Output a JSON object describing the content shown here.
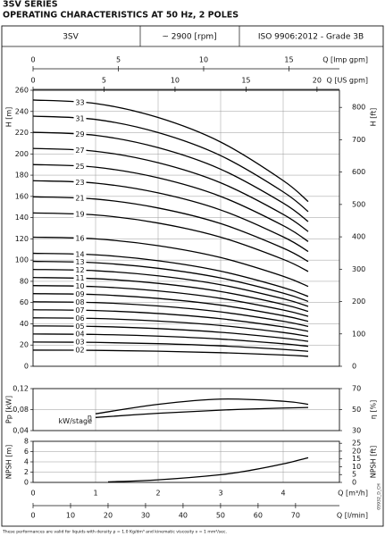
{
  "title": "3SV SERIES",
  "subtitle": "OPERATING CHARACTERISTICS AT 50 Hz, 2 POLES",
  "header": {
    "model": "3SV",
    "speed": "~ 2900 [rpm]",
    "standard": "ISO 9906:2012 - Grade 3B"
  },
  "footnote": "These performances are valid for liquids with density ρ = 1.0 Kg/dm³ and kinematic viscosity ν = 1 mm²/sec.",
  "code": "05932_D_CH",
  "chart_data": [
    {
      "type": "line",
      "ylabel": "H [m]",
      "y2label": "H [ft]",
      "xlim": [
        0,
        4.9
      ],
      "xticks": [
        0,
        1,
        2,
        3,
        4
      ],
      "ylim": [
        0,
        260
      ],
      "yticks": [
        0,
        20,
        40,
        60,
        80,
        100,
        120,
        140,
        160,
        180,
        200,
        220,
        240,
        260
      ],
      "y2lim": [
        0,
        853
      ],
      "y2ticks": [
        0,
        100,
        200,
        300,
        400,
        500,
        600,
        700,
        800
      ],
      "grid": true,
      "x_axes_top": [
        {
          "label": "Q [Imp gpm]",
          "xlim": [
            0,
            17.96
          ],
          "xticks": [
            0,
            5,
            10,
            15
          ]
        },
        {
          "label": "Q [US gpm]",
          "xlim": [
            0,
            21.58
          ],
          "xticks": [
            0,
            5,
            10,
            15,
            20
          ]
        }
      ],
      "x": [
        0,
        1,
        2,
        3,
        4,
        4.4
      ],
      "series": [
        {
          "name": "33",
          "color": "#000000",
          "values": [
            250.8,
            247.5,
            234.3,
            211.2,
            174.9,
            155.1
          ]
        },
        {
          "name": "31",
          "color": "#000000",
          "values": [
            235.6,
            232.5,
            220.1,
            198.4,
            164.3,
            145.7
          ]
        },
        {
          "name": "29",
          "color": "#000000",
          "values": [
            220.4,
            217.5,
            205.9,
            185.6,
            153.7,
            136.3
          ]
        },
        {
          "name": "27",
          "color": "#000000",
          "values": [
            205.2,
            202.5,
            191.7,
            172.8,
            143.1,
            126.9
          ]
        },
        {
          "name": "25",
          "color": "#000000",
          "values": [
            190,
            187.5,
            177.5,
            160,
            132.5,
            117.5
          ]
        },
        {
          "name": "23",
          "color": "#000000",
          "values": [
            174.8,
            172.5,
            163.3,
            147.2,
            121.9,
            108.1
          ]
        },
        {
          "name": "21",
          "color": "#000000",
          "values": [
            159.6,
            157.5,
            149.1,
            134.4,
            111.3,
            98.7
          ]
        },
        {
          "name": "19",
          "color": "#000000",
          "values": [
            144.4,
            142.5,
            134.9,
            121.6,
            100.7,
            89.3
          ]
        },
        {
          "name": "16",
          "color": "#000000",
          "values": [
            121.6,
            120,
            113.6,
            102.4,
            84.8,
            75.2
          ]
        },
        {
          "name": "14",
          "color": "#000000",
          "values": [
            106.4,
            105,
            99.4,
            89.6,
            74.2,
            65.8
          ]
        },
        {
          "name": "13",
          "color": "#000000",
          "values": [
            98.8,
            97.5,
            92.3,
            83.2,
            68.9,
            61.1
          ]
        },
        {
          "name": "12",
          "color": "#000000",
          "values": [
            91.2,
            90,
            85.2,
            76.8,
            63.6,
            56.4
          ]
        },
        {
          "name": "11",
          "color": "#000000",
          "values": [
            83.6,
            82.5,
            78.1,
            70.4,
            58.3,
            51.7
          ]
        },
        {
          "name": "10",
          "color": "#000000",
          "values": [
            76,
            75,
            71,
            64,
            53,
            47
          ]
        },
        {
          "name": "09",
          "color": "#000000",
          "values": [
            68.4,
            67.5,
            63.9,
            57.6,
            47.7,
            42.3
          ]
        },
        {
          "name": "08",
          "color": "#000000",
          "values": [
            60.8,
            60,
            56.8,
            51.2,
            42.4,
            37.6
          ]
        },
        {
          "name": "07",
          "color": "#000000",
          "values": [
            53.2,
            52.5,
            49.7,
            44.8,
            37.1,
            32.9
          ]
        },
        {
          "name": "06",
          "color": "#000000",
          "values": [
            45.6,
            45,
            42.6,
            38.4,
            31.8,
            28.2
          ]
        },
        {
          "name": "05",
          "color": "#000000",
          "values": [
            38,
            37.5,
            35.5,
            32,
            26.5,
            23.5
          ]
        },
        {
          "name": "04",
          "color": "#000000",
          "values": [
            30.4,
            30,
            28.4,
            25.6,
            21.2,
            18.8
          ]
        },
        {
          "name": "03",
          "color": "#000000",
          "values": [
            22.8,
            22.5,
            21.3,
            19.2,
            15.9,
            14.1
          ]
        },
        {
          "name": "02",
          "color": "#000000",
          "values": [
            15.2,
            15,
            14.2,
            12.8,
            10.6,
            9.4
          ]
        }
      ]
    },
    {
      "type": "line",
      "ylabel": "Pp [kW]",
      "y2label": "η [%]",
      "xlim": [
        0,
        4.9
      ],
      "xticks": [
        0,
        1,
        2,
        3,
        4
      ],
      "ylim": [
        0.04,
        0.12
      ],
      "yticks": [
        {
          "value": 0.04,
          "label": "0,04"
        },
        {
          "value": 0.08,
          "label": "0,08"
        },
        {
          "value": 0.12,
          "label": "0,12"
        }
      ],
      "y2lim": [
        30,
        70
      ],
      "y2ticks": [
        30,
        50,
        70
      ],
      "grid": true,
      "x": [
        1,
        2,
        3,
        4,
        4.4
      ],
      "series": [
        {
          "name": "η",
          "color": "#000000",
          "axis": "y2",
          "values": [
            46,
            55,
            60,
            58,
            55
          ]
        },
        {
          "name": "kW/stage",
          "color": "#000000",
          "values": [
            0.065,
            0.073,
            0.079,
            0.083,
            0.084
          ]
        }
      ]
    },
    {
      "type": "line",
      "ylabel": "NPSH [m]",
      "y2label": "NPSH [ft]",
      "xlabel": "Q [m³/h]",
      "xlim": [
        0,
        4.9
      ],
      "xticks": [
        0,
        1,
        2,
        3,
        4
      ],
      "ylim": [
        0,
        8
      ],
      "yticks": [
        0,
        2,
        4,
        6,
        8
      ],
      "y2lim": [
        0,
        26.25
      ],
      "y2ticks": [
        0,
        5,
        10,
        15,
        20,
        25
      ],
      "grid": true,
      "x_axes_bottom": [
        {
          "label": "Q [l/min]",
          "xlim": [
            0,
            81.7
          ],
          "xticks": [
            0,
            10,
            20,
            30,
            40,
            50,
            60,
            70
          ]
        }
      ],
      "x": [
        1.2,
        2,
        3,
        3.5,
        4,
        4.4
      ],
      "series": [
        {
          "color": "#000000",
          "values": [
            0.1,
            0.5,
            1.5,
            2.4,
            3.6,
            4.8
          ]
        }
      ]
    }
  ]
}
